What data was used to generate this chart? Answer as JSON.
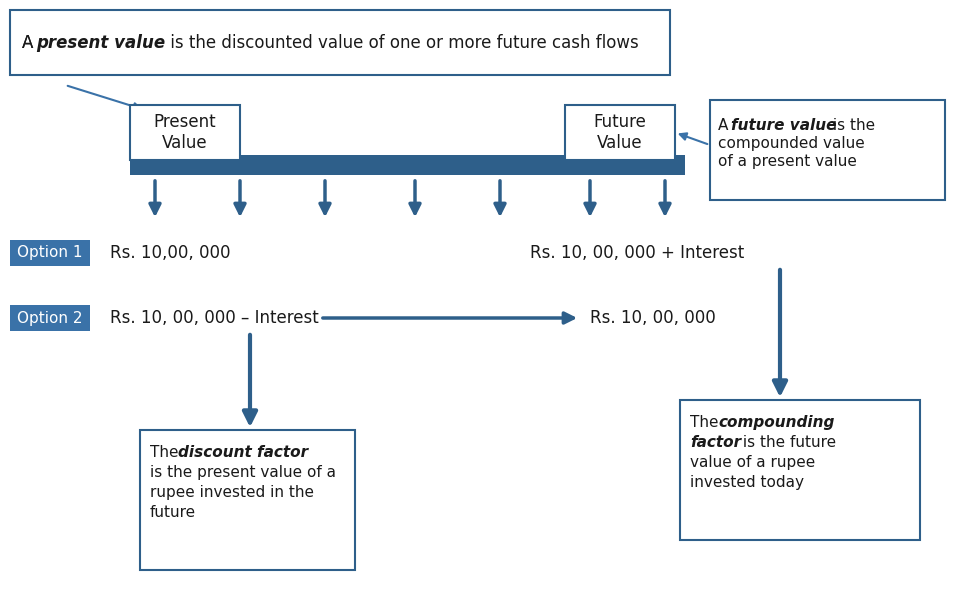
{
  "bg_color": "#ffffff",
  "blue_dark": "#2E5F8A",
  "blue_mid": "#3A72A8",
  "blue_light": "#4A90C4",
  "box_border": "#2E5F8A",
  "text_dark": "#1a1a1a",
  "title_text": "A present value is the discounted value of one or more future cash flows",
  "pv_label": "Present\nValue",
  "fv_label": "Future\nValue",
  "fv_note": "A future value is the\ncompounded value\nof a present value",
  "option1_label": "Option 1",
  "option1_left": "Rs. 10,00, 000",
  "option1_right": "Rs. 10, 00, 000 + Interest",
  "option2_label": "Option 2",
  "option2_left": "Rs. 10, 00, 000 – Interest",
  "option2_right": "Rs. 10, 00, 000",
  "discount_box": "The discount factor is\nthe present value of a\nrupee invested in the\nfuture",
  "compounding_box": "The compounding\nfactor is the future\nvalue of a rupee\ninvested today"
}
